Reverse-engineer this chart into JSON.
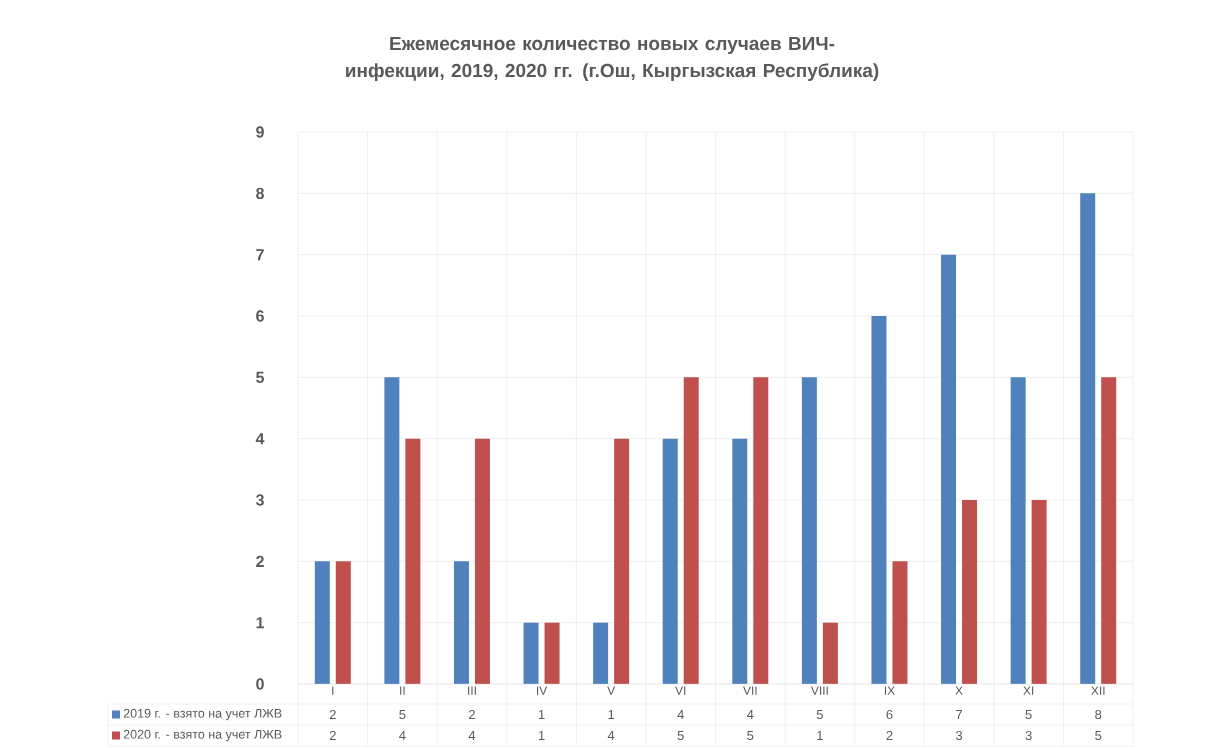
{
  "chart_data": {
    "type": "bar",
    "title": "Ежемесячное количество  новых случаев ВИЧ-инфекции,  2019, 2020 гг. (г.Ош, Кыргызская Республика)",
    "categories": [
      "I",
      "II",
      "III",
      "IV",
      "V",
      "VI",
      "VII",
      "VIII",
      "IX",
      "X",
      "XI",
      "XII"
    ],
    "series": [
      {
        "name": "2019 г. - взято на учет ЛЖВ",
        "color": "#4f81bd",
        "values": [
          2,
          5,
          2,
          1,
          1,
          4,
          4,
          5,
          6,
          7,
          5,
          8
        ]
      },
      {
        "name": "2020 г. - взято на учет ЛЖВ",
        "color": "#c0504d",
        "values": [
          2,
          4,
          4,
          1,
          4,
          5,
          5,
          1,
          2,
          3,
          3,
          5
        ]
      }
    ],
    "ylim": [
      0,
      9
    ],
    "yticks": [
      0,
      1,
      2,
      3,
      4,
      5,
      6,
      7,
      8,
      9
    ],
    "grid": true,
    "legend": "bottom",
    "data_labels": true
  }
}
